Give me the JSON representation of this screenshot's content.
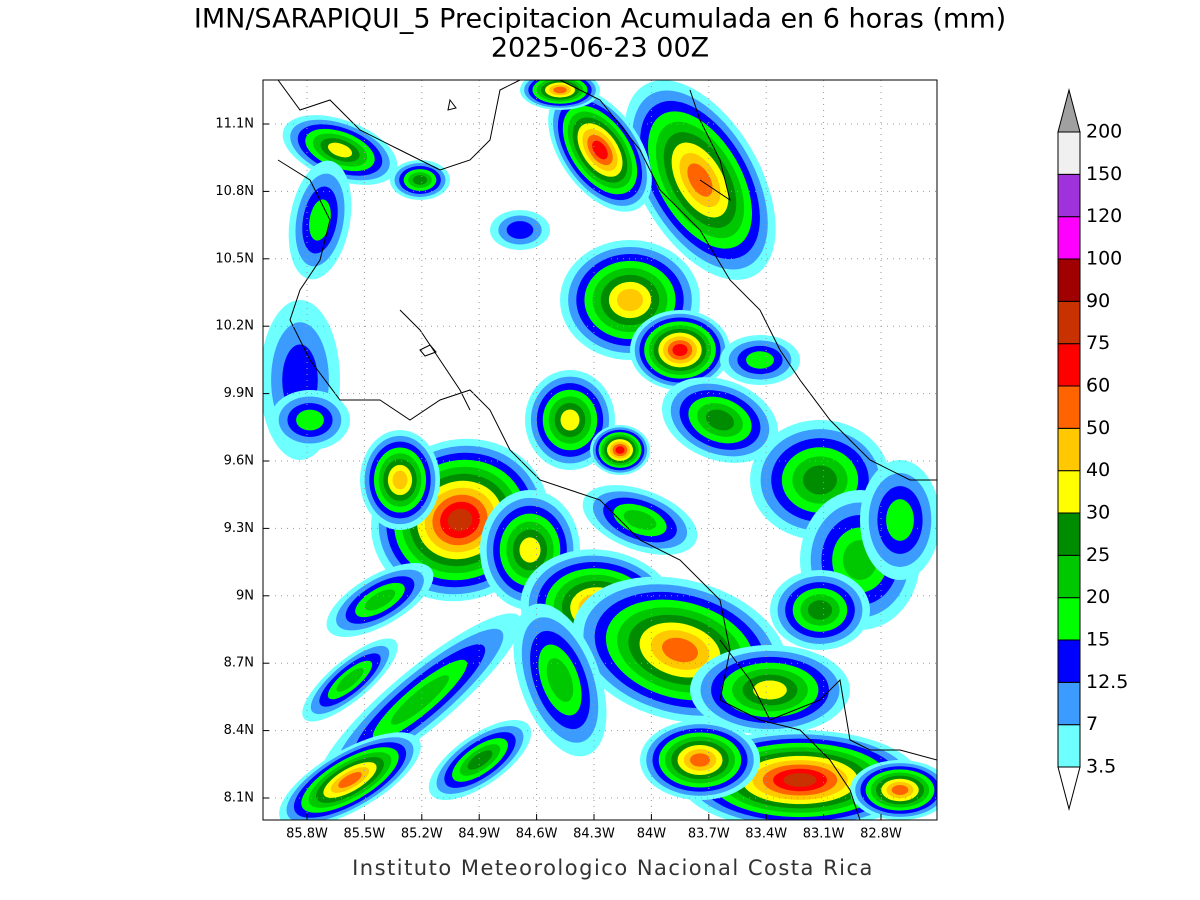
{
  "title": "IMN/SARAPIQUI_5 Precipitacion Acumulada en 6 horas (mm)",
  "subtitle": "2025-06-23 00Z",
  "map": {
    "lon_ticks": [
      "85.8W",
      "85.5W",
      "85.2W",
      "84.9W",
      "84.6W",
      "84.3W",
      "84W",
      "83.7W",
      "83.4W",
      "83.1W",
      "82.8W"
    ],
    "lat_ticks": [
      "11.1N",
      "10.8N",
      "10.5N",
      "10.2N",
      "9.9N",
      "9.6N",
      "9.3N",
      "9N",
      "8.7N",
      "8.4N",
      "8.1N"
    ]
  },
  "colorbar": {
    "bounds": [
      3.5,
      7,
      12.5,
      15,
      20,
      25,
      30,
      40,
      50,
      60,
      75,
      90,
      100,
      120,
      150,
      200
    ],
    "colors": [
      "#6effff",
      "#3c9bff",
      "#0000ff",
      "#00ff00",
      "#00c800",
      "#008c00",
      "#ffff00",
      "#ffc800",
      "#ff6400",
      "#ff0000",
      "#c83200",
      "#a00000",
      "#ff00ff",
      "#a032dc",
      "#f0f0f0"
    ],
    "under_color": "#ffffff",
    "over_color": "#a0a0a0"
  },
  "footer": "Instituto Meteorologico Nacional Costa Rica"
}
